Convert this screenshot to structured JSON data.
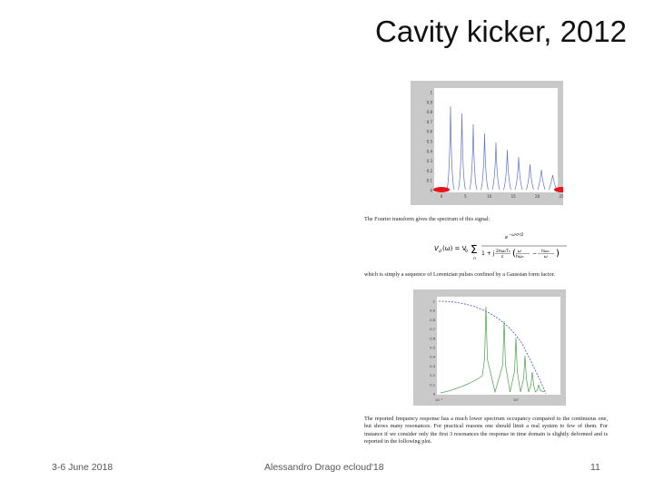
{
  "slide": {
    "title": "Cavity kicker, 2012"
  },
  "figure_top": {
    "y_ticks": [
      "1",
      "0.9",
      "0.8",
      "0.7",
      "0.6",
      "0.5",
      "0.4",
      "0.3",
      "0.2",
      "0.1",
      "0"
    ],
    "x_ticks": [
      "0",
      "5",
      "10",
      "15",
      "20",
      "25"
    ],
    "line_color": "#5c6fd6",
    "marker_color": "#e8141c"
  },
  "paper": {
    "intro": "The Fourier transform gives the spectrum of this signal:",
    "middle": "which is simply a sequence of Lorentzian pulses confined by a Gaussian form factor.",
    "closing": "The reported frequency response has a much lower spectrum occupancy compared to the continuous one, but shows many resonances. For practical reasons one should limit a real system to few of them. For instance if we consider only the first 3 resonances the response in time domain is slightly deformed and is reported in the following plot."
  },
  "figure_bottom": {
    "y_ticks": [
      "1",
      "0.9",
      "0.8",
      "0.7",
      "0.6",
      "0.5",
      "0.4",
      "0.3",
      "0.2",
      "0.1",
      "0"
    ],
    "x_ticks": [
      "10⁻¹",
      "10⁰"
    ],
    "resonance_color": "#4aa04a",
    "envelope_color": "#3a4fc4"
  },
  "footer": {
    "date": "3-6 June 2018",
    "author": "Alessandro Drago ecloud'18",
    "page": "11"
  }
}
